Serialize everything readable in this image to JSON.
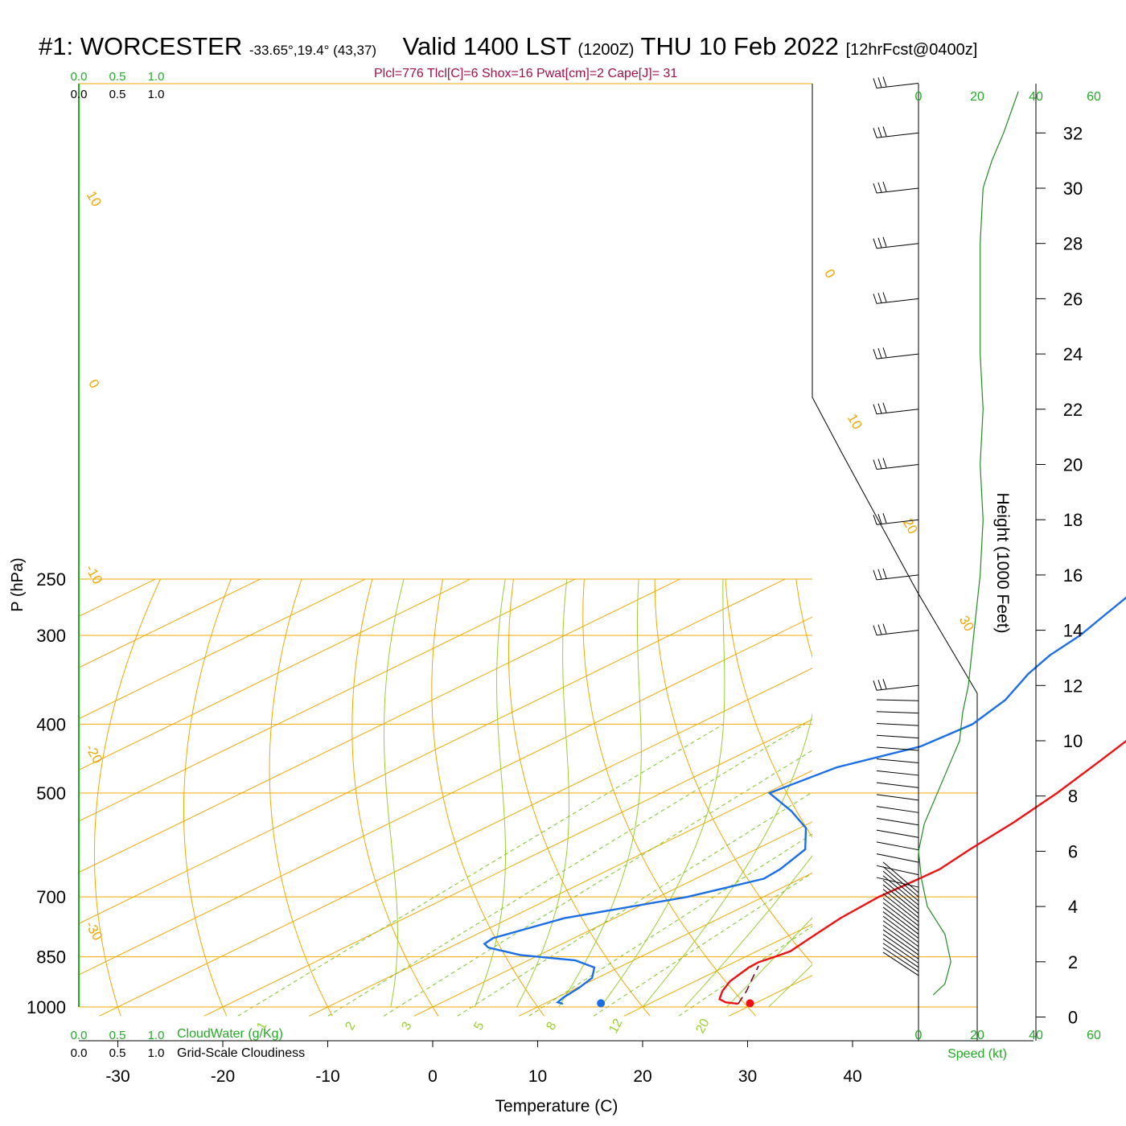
{
  "header": {
    "station": "#1: WORCESTER",
    "coords": "-33.65°,19.4° (43,37)",
    "valid": "Valid 1400 LST",
    "zulu": "(1200Z)",
    "date": "THU 10 Feb 2022",
    "forecast": "[12hrFcst@0400z]",
    "params": "Plcl=776 Tlcl[C]=6 Shox=16 Pwat[cm]=2 Cape[J]= 31"
  },
  "colors": {
    "temperature": "#ee1111",
    "dewpoint": "#1a6ee8",
    "isotherm": "#f0a800",
    "moist_adiabat": "#9acd32",
    "mixing_ratio": "#7cc520",
    "parcel": "#7a0030",
    "green_label": "#22aa22",
    "black": "#000000"
  },
  "chart_data": {
    "type": "line",
    "subtype": "skew-T log-P sounding",
    "xlabel": "Temperature (C)",
    "ylabel": "P (hPa)",
    "right_ylabel": "Height (1000 Feet)",
    "x_ticks": [
      -30,
      -20,
      -10,
      0,
      10,
      20,
      30,
      40
    ],
    "p_ticks": [
      250,
      300,
      400,
      500,
      700,
      850,
      1000
    ],
    "p_range": [
      250,
      1030
    ],
    "height_ticks": [
      0,
      2,
      4,
      6,
      8,
      10,
      12,
      14,
      16,
      18,
      20,
      22,
      24,
      26,
      28,
      30,
      32
    ],
    "isotherm_labels": [
      "10",
      "0",
      "-10",
      "-20",
      "-30",
      "0",
      "10",
      "20",
      "30"
    ],
    "mixing_ratio_labels": [
      "1",
      "2",
      "3",
      "5",
      "8",
      "12",
      "20"
    ],
    "series": [
      {
        "name": "Temperature",
        "points_p_T": [
          [
            990,
            28.5
          ],
          [
            985,
            27
          ],
          [
            975,
            25.8
          ],
          [
            950,
            24.5
          ],
          [
            920,
            23.3
          ],
          [
            880,
            22.4
          ],
          [
            865,
            22.3
          ],
          [
            850,
            22.8
          ],
          [
            835,
            23.2
          ],
          [
            800,
            22.5
          ],
          [
            750,
            21.5
          ],
          [
            700,
            21.0
          ],
          [
            660,
            21.3
          ],
          [
            640,
            21.4
          ],
          [
            600,
            20.4
          ],
          [
            550,
            19.3
          ],
          [
            500,
            17.7
          ],
          [
            450,
            15.5
          ],
          [
            420,
            14.0
          ],
          [
            400,
            12.6
          ],
          [
            350,
            9.3
          ],
          [
            320,
            7.3
          ],
          [
            300,
            6.3
          ],
          [
            280,
            5.5
          ],
          [
            262,
            5.2
          ]
        ]
      },
      {
        "name": "Dew point",
        "points_p_T": [
          [
            990,
            11.8
          ],
          [
            985,
            11.0
          ],
          [
            970,
            10.6
          ],
          [
            940,
            10.2
          ],
          [
            910,
            9.5
          ],
          [
            880,
            7.7
          ],
          [
            860,
            4.5
          ],
          [
            845,
            -1.8
          ],
          [
            825,
            -6.3
          ],
          [
            815,
            -7.4
          ],
          [
            800,
            -7.7
          ],
          [
            750,
            -4.8
          ],
          [
            700,
            2.8
          ],
          [
            660,
            6.5
          ],
          [
            640,
            6.2
          ],
          [
            600,
            4.7
          ],
          [
            560,
            0.6
          ],
          [
            530,
            -4.1
          ],
          [
            500,
            -9.7
          ],
          [
            460,
            -8.3
          ],
          [
            430,
            -4.4
          ],
          [
            400,
            -3.8
          ],
          [
            370,
            -5.4
          ],
          [
            340,
            -8.3
          ],
          [
            320,
            -9.9
          ],
          [
            300,
            -10.9
          ],
          [
            280,
            -12.6
          ],
          [
            262,
            -14.2
          ]
        ]
      },
      {
        "name": "Parcel",
        "points_p_T": [
          [
            990,
            28.5
          ],
          [
            950,
            26.8
          ],
          [
            910,
            24.8
          ],
          [
            875,
            23.0
          ]
        ]
      }
    ],
    "surface_points": [
      {
        "name": "surface temperature",
        "T": 29.5,
        "p": 988
      },
      {
        "name": "surface dewpoint",
        "T": 15.3,
        "p": 988
      }
    ],
    "wind_profile": {
      "speed_label": "Speed (kt)",
      "speed_ticks": [
        0,
        20,
        40,
        60
      ],
      "speed_by_height_kft": [
        [
          0.8,
          5
        ],
        [
          1.2,
          9
        ],
        [
          2,
          11
        ],
        [
          3,
          9
        ],
        [
          4,
          3
        ],
        [
          5,
          1
        ],
        [
          6,
          0
        ],
        [
          7,
          2
        ],
        [
          8,
          6
        ],
        [
          9,
          10
        ],
        [
          10,
          14
        ],
        [
          11,
          15
        ],
        [
          12,
          17
        ],
        [
          14,
          19
        ],
        [
          16,
          21
        ],
        [
          18,
          22
        ],
        [
          20,
          21
        ],
        [
          22,
          22
        ],
        [
          24,
          21
        ],
        [
          26,
          21
        ],
        [
          28,
          21
        ],
        [
          30,
          22
        ],
        [
          31,
          25
        ],
        [
          32,
          29
        ],
        [
          33.5,
          34
        ]
      ]
    },
    "cloud_scale": {
      "cloudwater_label": "CloudWater (g/Kg)",
      "cloudiness_label": "Grid-Scale Cloudiness",
      "ticks": [
        "0.0",
        "0.5",
        "1.0"
      ]
    }
  }
}
